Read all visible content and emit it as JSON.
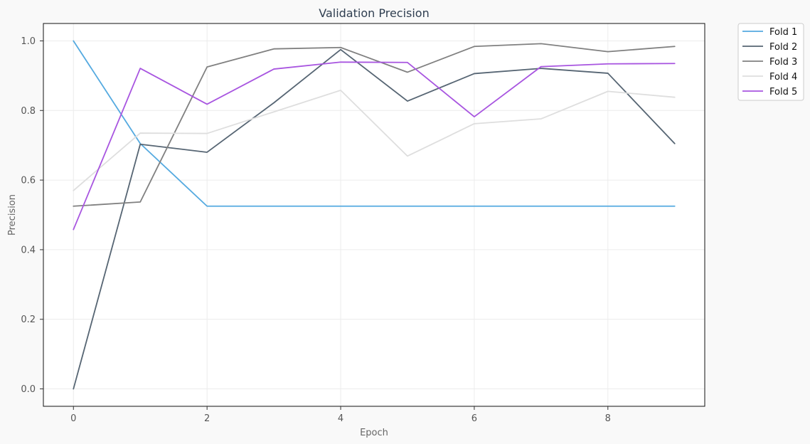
{
  "chart_data": {
    "type": "line",
    "title": "Validation Precision",
    "xlabel": "Epoch",
    "ylabel": "Precision",
    "x": [
      0,
      1,
      2,
      3,
      4,
      5,
      6,
      7,
      8,
      9
    ],
    "xlim": [
      -0.45,
      9.45
    ],
    "ylim": [
      -0.05,
      1.05
    ],
    "xticks": [
      0,
      2,
      4,
      6,
      8
    ],
    "xtick_labels": [
      "0",
      "2",
      "4",
      "6",
      "8"
    ],
    "yticks": [
      0.0,
      0.2,
      0.4,
      0.6,
      0.8,
      1.0
    ],
    "ytick_labels": [
      "0.0",
      "0.2",
      "0.4",
      "0.6",
      "0.8",
      "1.0"
    ],
    "grid": true,
    "legend_position": "outside-top-right",
    "series": [
      {
        "name": "Fold 1",
        "color": "#55aae0",
        "values": [
          1.0,
          0.705,
          0.525,
          0.525,
          0.525,
          0.525,
          0.525,
          0.525,
          0.525,
          0.525
        ]
      },
      {
        "name": "Fold 2",
        "color": "#566573",
        "values": [
          0.0,
          0.703,
          0.68,
          0.822,
          0.975,
          0.827,
          0.906,
          0.921,
          0.907,
          0.705
        ]
      },
      {
        "name": "Fold 3",
        "color": "#808080",
        "values": [
          0.525,
          0.537,
          0.925,
          0.977,
          0.981,
          0.91,
          0.984,
          0.992,
          0.969,
          0.984
        ]
      },
      {
        "name": "Fold 4",
        "color": "#dedede",
        "values": [
          0.57,
          0.735,
          0.734,
          0.796,
          0.858,
          0.669,
          0.762,
          0.776,
          0.855,
          0.838
        ]
      },
      {
        "name": "Fold 5",
        "color": "#a855e0",
        "values": [
          0.458,
          0.921,
          0.818,
          0.919,
          0.939,
          0.938,
          0.782,
          0.926,
          0.934,
          0.935
        ]
      }
    ]
  }
}
